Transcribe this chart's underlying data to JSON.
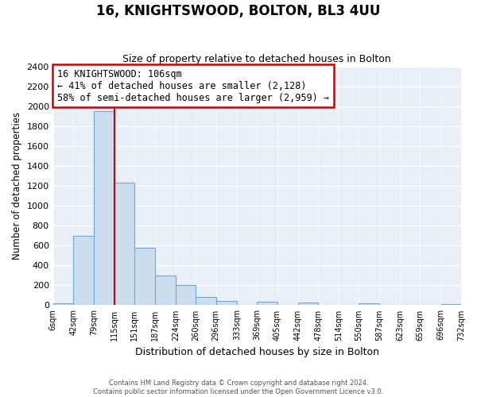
{
  "title": "16, KNIGHTSWOOD, BOLTON, BL3 4UU",
  "subtitle": "Size of property relative to detached houses in Bolton",
  "xlabel": "Distribution of detached houses by size in Bolton",
  "ylabel": "Number of detached properties",
  "bar_edges": [
    6,
    42,
    79,
    115,
    151,
    187,
    224,
    260,
    296,
    333,
    369,
    405,
    442,
    478,
    514,
    550,
    587,
    623,
    659,
    696,
    732
  ],
  "bar_heights": [
    18,
    700,
    1950,
    1230,
    575,
    300,
    200,
    80,
    45,
    5,
    35,
    5,
    25,
    5,
    0,
    20,
    5,
    0,
    0,
    10
  ],
  "bar_color": "#ccddf0",
  "bar_edge_color": "#6aaad4",
  "vline_x": 115,
  "vline_color": "#cc0000",
  "ylim": [
    0,
    2400
  ],
  "yticks": [
    0,
    200,
    400,
    600,
    800,
    1000,
    1200,
    1400,
    1600,
    1800,
    2000,
    2200,
    2400
  ],
  "tick_labels": [
    "6sqm",
    "42sqm",
    "79sqm",
    "115sqm",
    "151sqm",
    "187sqm",
    "224sqm",
    "260sqm",
    "296sqm",
    "333sqm",
    "369sqm",
    "405sqm",
    "442sqm",
    "478sqm",
    "514sqm",
    "550sqm",
    "587sqm",
    "623sqm",
    "659sqm",
    "696sqm",
    "732sqm"
  ],
  "annotation_title": "16 KNIGHTSWOOD: 106sqm",
  "annotation_line1": "← 41% of detached houses are smaller (2,128)",
  "annotation_line2": "58% of semi-detached houses are larger (2,959) →",
  "annotation_box_color": "#ffffff",
  "annotation_box_edge": "#cc0000",
  "footer1": "Contains HM Land Registry data © Crown copyright and database right 2024.",
  "footer2": "Contains public sector information licensed under the Open Government Licence v3.0.",
  "fig_bg_color": "#ffffff",
  "plot_bg_color": "#e8eff7",
  "grid_color": "#ffffff",
  "title_fontsize": 12,
  "subtitle_fontsize": 9
}
